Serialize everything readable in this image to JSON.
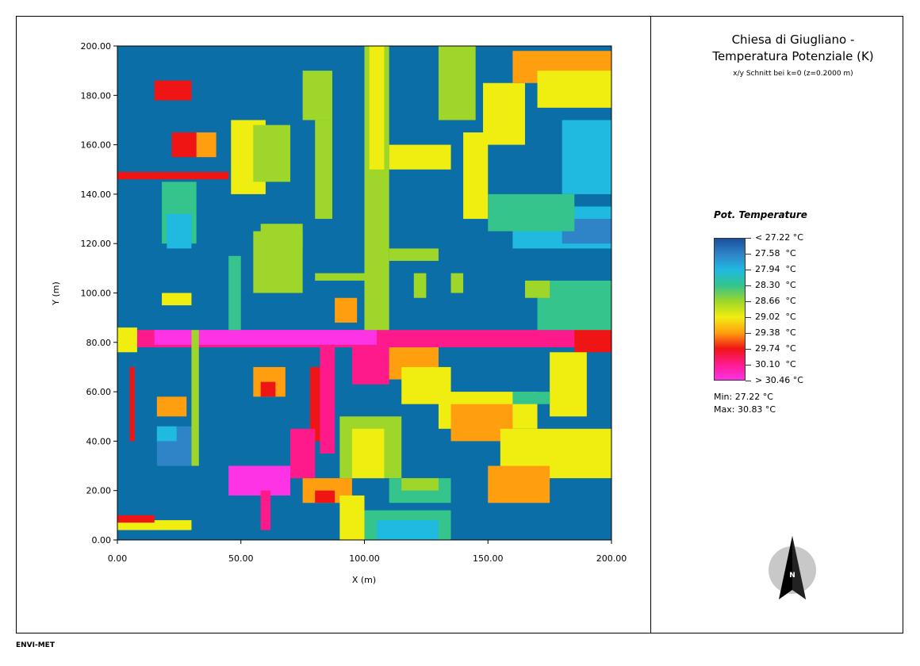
{
  "header": {
    "title_line1": "Chiesa di Giugliano -",
    "title_line2": "Temperatura Potenziale (K)",
    "subtitle": "x/y Schnitt bei k=0 (z=0.2000 m)"
  },
  "legend": {
    "title": "Pot. Temperature",
    "labels": [
      "< 27.22 °C",
      "27.58  °C",
      "27.94  °C",
      "28.30  °C",
      "28.66  °C",
      "29.02  °C",
      "29.38  °C",
      "29.74  °C",
      "30.10  °C",
      "> 30.46 °C"
    ],
    "colors": [
      "#1a4f9e",
      "#2f84c8",
      "#20b9e0",
      "#34c48c",
      "#9ed62a",
      "#f0ee10",
      "#ff9f10",
      "#f01515",
      "#ff1a8c",
      "#ff33e6"
    ],
    "background_color": "#0b6ea6"
  },
  "stats": {
    "min": "Min: 27.22 °C",
    "max": "Max: 30.83 °C"
  },
  "footer": "ENVI-MET",
  "north_label": "N",
  "chart_data": {
    "type": "heatmap",
    "xlabel": "X (m)",
    "ylabel": "Y (m)",
    "xlim": [
      0,
      200
    ],
    "ylim": [
      0,
      200
    ],
    "x_ticks": [
      "0.00",
      "50.00",
      "100.00",
      "150.00",
      "200.00"
    ],
    "y_ticks": [
      "0.00",
      "20.00",
      "40.00",
      "60.00",
      "80.00",
      "100.00",
      "120.00",
      "140.00",
      "160.00",
      "180.00",
      "200.00"
    ],
    "background_value": "buildings",
    "regions": [
      {
        "x": [
          0,
          200
        ],
        "y": [
          78,
          85
        ],
        "color": "#ff1a8c"
      },
      {
        "x": [
          15,
          105
        ],
        "y": [
          79,
          85
        ],
        "color": "#ff33e6"
      },
      {
        "x": [
          110,
          185
        ],
        "y": [
          79,
          84
        ],
        "color": "#ff1a8c"
      },
      {
        "x": [
          185,
          200
        ],
        "y": [
          76,
          86
        ],
        "color": "#f01515"
      },
      {
        "x": [
          0,
          8
        ],
        "y": [
          76,
          86
        ],
        "color": "#f0ee10"
      },
      {
        "x": [
          82,
          88
        ],
        "y": [
          35,
          78
        ],
        "color": "#ff1a8c"
      },
      {
        "x": [
          78,
          82
        ],
        "y": [
          40,
          70
        ],
        "color": "#f01515"
      },
      {
        "x": [
          70,
          80
        ],
        "y": [
          25,
          45
        ],
        "color": "#ff1a8c"
      },
      {
        "x": [
          45,
          70
        ],
        "y": [
          18,
          30
        ],
        "color": "#ff33e6"
      },
      {
        "x": [
          58,
          62
        ],
        "y": [
          4,
          20
        ],
        "color": "#ff1a8c"
      },
      {
        "x": [
          15,
          30
        ],
        "y": [
          178,
          186
        ],
        "color": "#f01515"
      },
      {
        "x": [
          22,
          40
        ],
        "y": [
          155,
          165
        ],
        "color": "#f01515"
      },
      {
        "x": [
          32,
          40
        ],
        "y": [
          155,
          165
        ],
        "color": "#ff9f10"
      },
      {
        "x": [
          0,
          45
        ],
        "y": [
          146,
          149
        ],
        "color": "#f01515"
      },
      {
        "x": [
          18,
          32
        ],
        "y": [
          120,
          145
        ],
        "color": "#34c48c"
      },
      {
        "x": [
          20,
          30
        ],
        "y": [
          118,
          132
        ],
        "color": "#20b9e0"
      },
      {
        "x": [
          46,
          60
        ],
        "y": [
          140,
          170
        ],
        "color": "#f0ee10"
      },
      {
        "x": [
          55,
          70
        ],
        "y": [
          145,
          168
        ],
        "color": "#9ed62a"
      },
      {
        "x": [
          75,
          87
        ],
        "y": [
          170,
          190
        ],
        "color": "#9ed62a"
      },
      {
        "x": [
          80,
          87
        ],
        "y": [
          130,
          170
        ],
        "color": "#9ed62a"
      },
      {
        "x": [
          100,
          110
        ],
        "y": [
          85,
          200
        ],
        "color": "#9ed62a"
      },
      {
        "x": [
          102,
          108
        ],
        "y": [
          150,
          200
        ],
        "color": "#f0ee10"
      },
      {
        "x": [
          110,
          135
        ],
        "y": [
          150,
          160
        ],
        "color": "#f0ee10"
      },
      {
        "x": [
          130,
          145
        ],
        "y": [
          170,
          200
        ],
        "color": "#9ed62a"
      },
      {
        "x": [
          140,
          150
        ],
        "y": [
          130,
          165
        ],
        "color": "#f0ee10"
      },
      {
        "x": [
          148,
          165
        ],
        "y": [
          160,
          185
        ],
        "color": "#f0ee10"
      },
      {
        "x": [
          160,
          200
        ],
        "y": [
          185,
          198
        ],
        "color": "#ff9f10"
      },
      {
        "x": [
          170,
          200
        ],
        "y": [
          175,
          190
        ],
        "color": "#f0ee10"
      },
      {
        "x": [
          180,
          200
        ],
        "y": [
          140,
          170
        ],
        "color": "#20b9e0"
      },
      {
        "x": [
          160,
          200
        ],
        "y": [
          118,
          135
        ],
        "color": "#20b9e0"
      },
      {
        "x": [
          180,
          200
        ],
        "y": [
          120,
          130
        ],
        "color": "#2f84c8"
      },
      {
        "x": [
          150,
          185
        ],
        "y": [
          125,
          140
        ],
        "color": "#34c48c"
      },
      {
        "x": [
          110,
          130
        ],
        "y": [
          113,
          118
        ],
        "color": "#9ed62a"
      },
      {
        "x": [
          55,
          75
        ],
        "y": [
          100,
          125
        ],
        "color": "#9ed62a"
      },
      {
        "x": [
          58,
          75
        ],
        "y": [
          118,
          128
        ],
        "color": "#9ed62a"
      },
      {
        "x": [
          45,
          50
        ],
        "y": [
          85,
          115
        ],
        "color": "#34c48c"
      },
      {
        "x": [
          18,
          30
        ],
        "y": [
          95,
          100
        ],
        "color": "#f0ee10"
      },
      {
        "x": [
          88,
          97
        ],
        "y": [
          88,
          98
        ],
        "color": "#ff9f10"
      },
      {
        "x": [
          80,
          100
        ],
        "y": [
          105,
          108
        ],
        "color": "#9ed62a"
      },
      {
        "x": [
          60,
          68
        ],
        "y": [
          102,
          110
        ],
        "color": "#9ed62a"
      },
      {
        "x": [
          170,
          200
        ],
        "y": [
          85,
          105
        ],
        "color": "#34c48c"
      },
      {
        "x": [
          165,
          175
        ],
        "y": [
          98,
          105
        ],
        "color": "#9ed62a"
      },
      {
        "x": [
          95,
          110
        ],
        "y": [
          63,
          78
        ],
        "color": "#ff1a8c"
      },
      {
        "x": [
          110,
          130
        ],
        "y": [
          65,
          78
        ],
        "color": "#ff9f10"
      },
      {
        "x": [
          115,
          135
        ],
        "y": [
          55,
          70
        ],
        "color": "#f0ee10"
      },
      {
        "x": [
          130,
          170
        ],
        "y": [
          45,
          60
        ],
        "color": "#f0ee10"
      },
      {
        "x": [
          135,
          160
        ],
        "y": [
          40,
          55
        ],
        "color": "#ff9f10"
      },
      {
        "x": [
          155,
          200
        ],
        "y": [
          25,
          45
        ],
        "color": "#f0ee10"
      },
      {
        "x": [
          175,
          190
        ],
        "y": [
          50,
          76
        ],
        "color": "#f0ee10"
      },
      {
        "x": [
          150,
          175
        ],
        "y": [
          15,
          30
        ],
        "color": "#ff9f10"
      },
      {
        "x": [
          90,
          115
        ],
        "y": [
          25,
          50
        ],
        "color": "#9ed62a"
      },
      {
        "x": [
          95,
          108
        ],
        "y": [
          25,
          45
        ],
        "color": "#f0ee10"
      },
      {
        "x": [
          110,
          135
        ],
        "y": [
          15,
          25
        ],
        "color": "#34c48c"
      },
      {
        "x": [
          115,
          130
        ],
        "y": [
          20,
          25
        ],
        "color": "#9ed62a"
      },
      {
        "x": [
          100,
          135
        ],
        "y": [
          0,
          12
        ],
        "color": "#34c48c"
      },
      {
        "x": [
          105,
          130
        ],
        "y": [
          0,
          8
        ],
        "color": "#20b9e0"
      },
      {
        "x": [
          75,
          95
        ],
        "y": [
          15,
          25
        ],
        "color": "#ff9f10"
      },
      {
        "x": [
          80,
          88
        ],
        "y": [
          15,
          20
        ],
        "color": "#f01515"
      },
      {
        "x": [
          90,
          100
        ],
        "y": [
          0,
          18
        ],
        "color": "#f0ee10"
      },
      {
        "x": [
          55,
          68
        ],
        "y": [
          58,
          70
        ],
        "color": "#ff9f10"
      },
      {
        "x": [
          58,
          64
        ],
        "y": [
          58,
          64
        ],
        "color": "#f01515"
      },
      {
        "x": [
          16,
          28
        ],
        "y": [
          50,
          58
        ],
        "color": "#ff9f10"
      },
      {
        "x": [
          16,
          32
        ],
        "y": [
          30,
          46
        ],
        "color": "#2f84c8"
      },
      {
        "x": [
          16,
          24
        ],
        "y": [
          40,
          46
        ],
        "color": "#20b9e0"
      },
      {
        "x": [
          30,
          33
        ],
        "y": [
          30,
          85
        ],
        "color": "#9ed62a"
      },
      {
        "x": [
          5,
          7
        ],
        "y": [
          40,
          70
        ],
        "color": "#f01515"
      },
      {
        "x": [
          0,
          30
        ],
        "y": [
          4,
          8
        ],
        "color": "#f0ee10"
      },
      {
        "x": [
          0,
          15
        ],
        "y": [
          7,
          10
        ],
        "color": "#f01515"
      },
      {
        "x": [
          160,
          175
        ],
        "y": [
          55,
          60
        ],
        "color": "#34c48c"
      },
      {
        "x": [
          120,
          125
        ],
        "y": [
          98,
          108
        ],
        "color": "#9ed62a"
      },
      {
        "x": [
          135,
          140
        ],
        "y": [
          100,
          108
        ],
        "color": "#9ed62a"
      }
    ]
  }
}
